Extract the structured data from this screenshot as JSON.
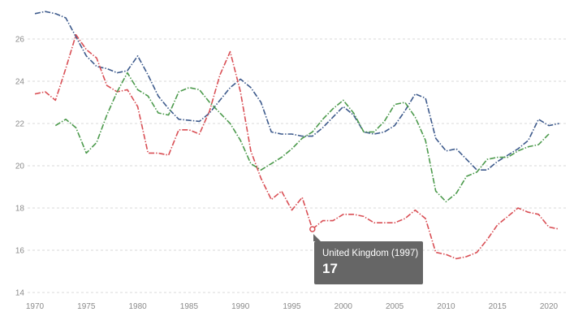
{
  "chart_data": {
    "type": "line",
    "title": "",
    "xlabel": "",
    "ylabel": "",
    "xlim": [
      1970,
      2022
    ],
    "ylim": [
      14,
      27
    ],
    "x_ticks": [
      1970,
      1975,
      1980,
      1985,
      1990,
      1995,
      2000,
      2005,
      2010,
      2015,
      2020
    ],
    "y_ticks": [
      14,
      16,
      18,
      20,
      22,
      24,
      26
    ],
    "grid": "horizontal dashed",
    "series": [
      {
        "color": "#3d5a8c",
        "points": [
          [
            1970,
            27.2
          ],
          [
            1971,
            27.3
          ],
          [
            1972,
            27.2
          ],
          [
            1973,
            27.0
          ],
          [
            1974,
            26.1
          ],
          [
            1975,
            25.2
          ],
          [
            1976,
            24.7
          ],
          [
            1977,
            24.6
          ],
          [
            1978,
            24.4
          ],
          [
            1979,
            24.5
          ],
          [
            1980,
            25.2
          ],
          [
            1981,
            24.3
          ],
          [
            1982,
            23.3
          ],
          [
            1983,
            22.7
          ],
          [
            1984,
            22.2
          ],
          [
            1985,
            22.15
          ],
          [
            1986,
            22.1
          ],
          [
            1987,
            22.5
          ],
          [
            1988,
            23.1
          ],
          [
            1989,
            23.7
          ],
          [
            1990,
            24.1
          ],
          [
            1991,
            23.7
          ],
          [
            1992,
            23.0
          ],
          [
            1993,
            21.6
          ],
          [
            1994,
            21.5
          ],
          [
            1995,
            21.5
          ],
          [
            1996,
            21.4
          ],
          [
            1997,
            21.4
          ],
          [
            1998,
            21.8
          ],
          [
            1999,
            22.3
          ],
          [
            2000,
            22.8
          ],
          [
            2001,
            22.4
          ],
          [
            2002,
            21.6
          ],
          [
            2003,
            21.5
          ],
          [
            2004,
            21.6
          ],
          [
            2005,
            21.9
          ],
          [
            2006,
            22.6
          ],
          [
            2007,
            23.4
          ],
          [
            2008,
            23.2
          ],
          [
            2009,
            21.3
          ],
          [
            2010,
            20.7
          ],
          [
            2011,
            20.8
          ],
          [
            2012,
            20.3
          ],
          [
            2013,
            19.8
          ],
          [
            2014,
            19.8
          ],
          [
            2015,
            20.2
          ],
          [
            2016,
            20.5
          ],
          [
            2017,
            20.8
          ],
          [
            2018,
            21.2
          ],
          [
            2019,
            22.2
          ],
          [
            2020,
            21.9
          ],
          [
            2021,
            22.0
          ]
        ]
      },
      {
        "color": "#d94f55",
        "points": [
          [
            1970,
            23.4
          ],
          [
            1971,
            23.5
          ],
          [
            1972,
            23.1
          ],
          [
            1973,
            24.6
          ],
          [
            1974,
            26.2
          ],
          [
            1975,
            25.5
          ],
          [
            1976,
            25.1
          ],
          [
            1977,
            23.8
          ],
          [
            1978,
            23.5
          ],
          [
            1979,
            23.6
          ],
          [
            1980,
            22.8
          ],
          [
            1981,
            20.6
          ],
          [
            1982,
            20.6
          ],
          [
            1983,
            20.5
          ],
          [
            1984,
            21.7
          ],
          [
            1985,
            21.7
          ],
          [
            1986,
            21.5
          ],
          [
            1987,
            22.6
          ],
          [
            1988,
            24.3
          ],
          [
            1989,
            25.4
          ],
          [
            1990,
            23.5
          ],
          [
            1991,
            20.7
          ],
          [
            1992,
            19.4
          ],
          [
            1993,
            18.4
          ],
          [
            1994,
            18.8
          ],
          [
            1995,
            17.9
          ],
          [
            1996,
            18.5
          ],
          [
            1997,
            17.0
          ],
          [
            1998,
            17.4
          ],
          [
            1999,
            17.4
          ],
          [
            2000,
            17.7
          ],
          [
            2001,
            17.7
          ],
          [
            2002,
            17.6
          ],
          [
            2003,
            17.3
          ],
          [
            2004,
            17.3
          ],
          [
            2005,
            17.3
          ],
          [
            2006,
            17.5
          ],
          [
            2007,
            17.9
          ],
          [
            2008,
            17.5
          ],
          [
            2009,
            15.9
          ],
          [
            2010,
            15.8
          ],
          [
            2011,
            15.6
          ],
          [
            2012,
            15.7
          ],
          [
            2013,
            15.9
          ],
          [
            2014,
            16.5
          ],
          [
            2015,
            17.2
          ],
          [
            2016,
            17.6
          ],
          [
            2017,
            18.0
          ],
          [
            2018,
            17.8
          ],
          [
            2019,
            17.7
          ],
          [
            2020,
            17.1
          ],
          [
            2021,
            17.0
          ]
        ]
      },
      {
        "color": "#4c9a4c",
        "points": [
          [
            1972,
            21.9
          ],
          [
            1973,
            22.2
          ],
          [
            1974,
            21.8
          ],
          [
            1975,
            20.6
          ],
          [
            1976,
            21.1
          ],
          [
            1977,
            22.4
          ],
          [
            1978,
            23.5
          ],
          [
            1979,
            24.4
          ],
          [
            1980,
            23.6
          ],
          [
            1981,
            23.3
          ],
          [
            1982,
            22.5
          ],
          [
            1983,
            22.4
          ],
          [
            1984,
            23.5
          ],
          [
            1985,
            23.7
          ],
          [
            1986,
            23.6
          ],
          [
            1987,
            23.0
          ],
          [
            1988,
            22.5
          ],
          [
            1989,
            22.0
          ],
          [
            1990,
            21.2
          ],
          [
            1991,
            20.1
          ],
          [
            1992,
            19.8
          ],
          [
            1993,
            20.1
          ],
          [
            1994,
            20.4
          ],
          [
            1995,
            20.8
          ],
          [
            1996,
            21.3
          ],
          [
            1997,
            21.6
          ],
          [
            1998,
            22.2
          ],
          [
            1999,
            22.7
          ],
          [
            2000,
            23.1
          ],
          [
            2001,
            22.5
          ],
          [
            2002,
            21.6
          ],
          [
            2003,
            21.6
          ],
          [
            2004,
            22.1
          ],
          [
            2005,
            22.9
          ],
          [
            2006,
            23.0
          ],
          [
            2007,
            22.3
          ],
          [
            2008,
            21.2
          ],
          [
            2009,
            18.8
          ],
          [
            2010,
            18.3
          ],
          [
            2011,
            18.7
          ],
          [
            2012,
            19.5
          ],
          [
            2013,
            19.7
          ],
          [
            2014,
            20.3
          ],
          [
            2015,
            20.4
          ],
          [
            2016,
            20.4
          ],
          [
            2017,
            20.7
          ],
          [
            2018,
            20.9
          ],
          [
            2019,
            21.0
          ],
          [
            2020,
            21.5
          ]
        ]
      }
    ],
    "highlight": {
      "series_index": 1,
      "x": 1997,
      "y": 17
    }
  },
  "tooltip": {
    "title": "United Kingdom (1997)",
    "value": "17"
  }
}
